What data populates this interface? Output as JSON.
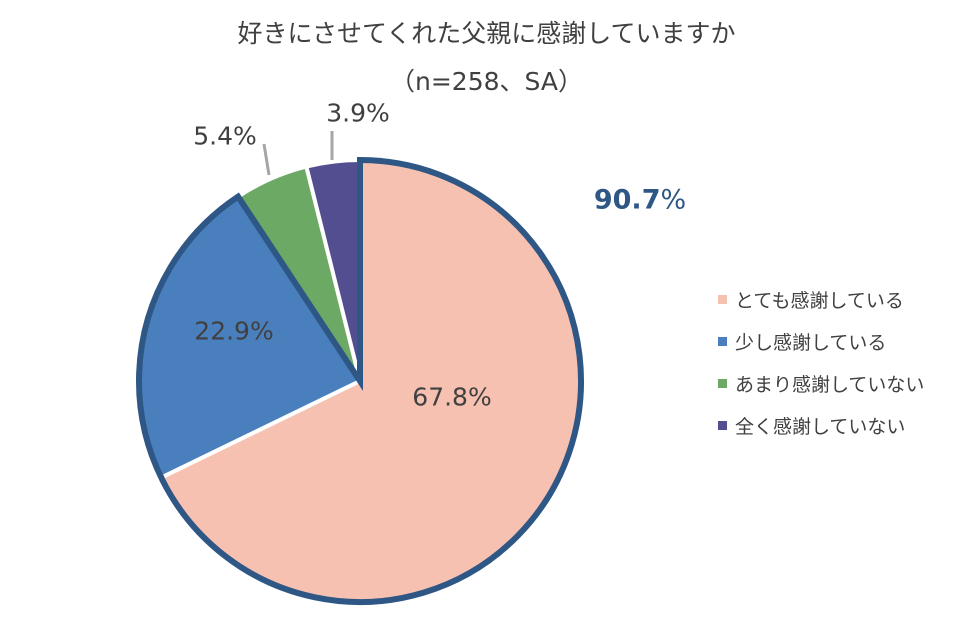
{
  "title": {
    "line1": "好きにさせてくれた父親に感謝していますか",
    "line2": "（n=258、SA）"
  },
  "total_annotation": {
    "value": "90.7",
    "unit": "%",
    "color": "#2E5786"
  },
  "legend": [
    {
      "label": "とても感謝している",
      "color": "#F6C1B0"
    },
    {
      "label": "少し感謝している",
      "color": "#4A7FBE"
    },
    {
      "label": "あまり感謝していない",
      "color": "#6BA965"
    },
    {
      "label": "全く感謝していない",
      "color": "#534E8F"
    }
  ],
  "labels": [
    {
      "text": "67.8%"
    },
    {
      "text": "22.9%"
    },
    {
      "text": "5.4%"
    },
    {
      "text": "3.9%"
    }
  ],
  "chart_data": {
    "type": "pie",
    "title": "好きにさせてくれた父親に感謝していますか（n=258、SA）",
    "categories": [
      "とても感謝している",
      "少し感謝している",
      "あまり感謝していない",
      "全く感謝していない"
    ],
    "values": [
      67.8,
      22.9,
      5.4,
      3.9
    ],
    "colors": [
      "#F6C1B0",
      "#4A7FBE",
      "#6BA965",
      "#534E8F"
    ],
    "start_angle": "12 o'clock, clockwise",
    "highlight": {
      "categories": [
        "とても感謝している",
        "少し感謝している"
      ],
      "total": 90.7,
      "outline_color": "#2E5786"
    },
    "legend_position": "right"
  }
}
